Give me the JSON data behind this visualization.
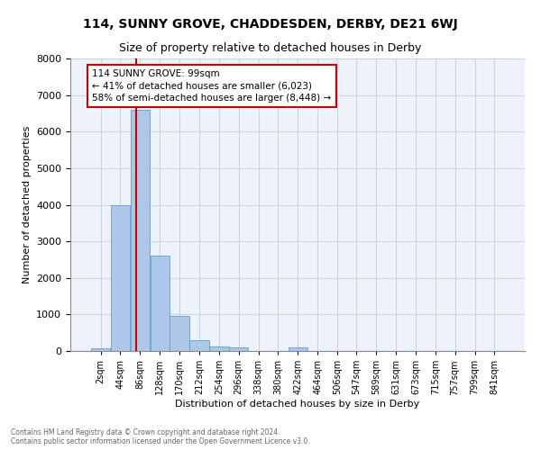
{
  "title": "114, SUNNY GROVE, CHADDESDEN, DERBY, DE21 6WJ",
  "subtitle": "Size of property relative to detached houses in Derby",
  "xlabel": "Distribution of detached houses by size in Derby",
  "ylabel": "Number of detached properties",
  "footer_line1": "Contains HM Land Registry data © Crown copyright and database right 2024.",
  "footer_line2": "Contains public sector information licensed under the Open Government Licence v3.0.",
  "annotation_line1": "114 SUNNY GROVE: 99sqm",
  "annotation_line2": "← 41% of detached houses are smaller (6,023)",
  "annotation_line3": "58% of semi-detached houses are larger (8,448) →",
  "bar_color": "#aec6e8",
  "bar_edge_color": "#5a9fd4",
  "grid_color": "#c8d4e8",
  "background_color": "#eef2fa",
  "red_line_color": "#cc0000",
  "bin_starts": [
    2,
    44,
    86,
    128,
    170,
    212,
    254,
    296,
    338,
    380,
    422,
    464,
    506,
    547,
    589,
    631,
    673,
    715,
    757,
    799,
    841
  ],
  "bin_width": 42,
  "bar_heights": [
    70,
    4000,
    6600,
    2600,
    950,
    300,
    120,
    100,
    0,
    0,
    100,
    0,
    0,
    0,
    0,
    0,
    0,
    0,
    0,
    0,
    0
  ],
  "property_size": 99,
  "ylim": [
    0,
    8000
  ],
  "yticks": [
    0,
    1000,
    2000,
    3000,
    4000,
    5000,
    6000,
    7000,
    8000
  ],
  "title_fontsize": 10,
  "subtitle_fontsize": 9,
  "ylabel_fontsize": 8,
  "xlabel_fontsize": 8,
  "tick_fontsize": 7,
  "annotation_fontsize": 7.5,
  "footer_fontsize": 5.5
}
